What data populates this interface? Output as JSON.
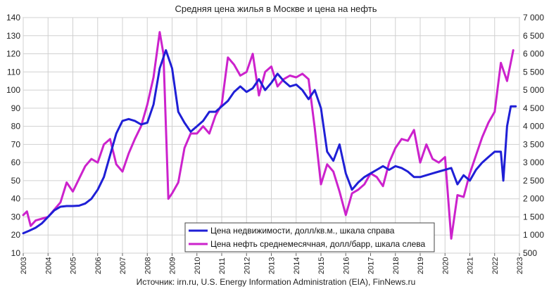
{
  "chart_data": {
    "type": "line",
    "title": "Средняя цена жилья в Москве и цена на нефть",
    "source": "Источник: irn.ru, U.S. Energy Information Administration (EIA), FinNews.ru",
    "x_ticks": [
      "2003",
      "2004",
      "2005",
      "2006",
      "2007",
      "2008",
      "2009",
      "2010",
      "2011",
      "2012",
      "2013",
      "2014",
      "2015",
      "2016",
      "2017",
      "2018",
      "2019",
      "2020",
      "2021",
      "2022",
      "2023"
    ],
    "left_axis": {
      "ylim": [
        10,
        140
      ],
      "ticks": [
        "10",
        "20",
        "30",
        "40",
        "50",
        "60",
        "70",
        "80",
        "90",
        "100",
        "110",
        "120",
        "130",
        "140"
      ]
    },
    "right_axis": {
      "ylim": [
        500,
        7000
      ],
      "ticks": [
        "500",
        "1 000",
        "1 500",
        "2 000",
        "2 500",
        "3 000",
        "3 500",
        "4 000",
        "4 500",
        "5 000",
        "5 500",
        "6 000",
        "6 500",
        "7 000"
      ]
    },
    "grid": true,
    "legend_position": "bottom-center",
    "series": [
      {
        "name": "Цена недвижимости, долл/кв.м., шкала справа",
        "color": "#1f1fd6",
        "axis": "right",
        "points": [
          [
            2003.0,
            1050
          ],
          [
            2003.25,
            1120
          ],
          [
            2003.5,
            1200
          ],
          [
            2003.75,
            1320
          ],
          [
            2004.0,
            1500
          ],
          [
            2004.25,
            1680
          ],
          [
            2004.5,
            1780
          ],
          [
            2004.75,
            1800
          ],
          [
            2005.0,
            1800
          ],
          [
            2005.25,
            1810
          ],
          [
            2005.5,
            1870
          ],
          [
            2005.75,
            2000
          ],
          [
            2006.0,
            2250
          ],
          [
            2006.25,
            2600
          ],
          [
            2006.5,
            3200
          ],
          [
            2006.75,
            3800
          ],
          [
            2007.0,
            4150
          ],
          [
            2007.25,
            4200
          ],
          [
            2007.5,
            4150
          ],
          [
            2007.75,
            4050
          ],
          [
            2008.0,
            4100
          ],
          [
            2008.25,
            4600
          ],
          [
            2008.5,
            5600
          ],
          [
            2008.75,
            6100
          ],
          [
            2009.0,
            5600
          ],
          [
            2009.25,
            4400
          ],
          [
            2009.5,
            4100
          ],
          [
            2009.75,
            3850
          ],
          [
            2010.0,
            4000
          ],
          [
            2010.25,
            4150
          ],
          [
            2010.5,
            4400
          ],
          [
            2010.75,
            4400
          ],
          [
            2011.0,
            4550
          ],
          [
            2011.25,
            4700
          ],
          [
            2011.5,
            4950
          ],
          [
            2011.75,
            5100
          ],
          [
            2012.0,
            4950
          ],
          [
            2012.25,
            5050
          ],
          [
            2012.5,
            5300
          ],
          [
            2012.75,
            5000
          ],
          [
            2013.0,
            5200
          ],
          [
            2013.25,
            5450
          ],
          [
            2013.5,
            5250
          ],
          [
            2013.75,
            5100
          ],
          [
            2014.0,
            5150
          ],
          [
            2014.25,
            5000
          ],
          [
            2014.5,
            4750
          ],
          [
            2014.75,
            5000
          ],
          [
            2015.0,
            4500
          ],
          [
            2015.25,
            3300
          ],
          [
            2015.5,
            3050
          ],
          [
            2015.75,
            3500
          ],
          [
            2016.0,
            2700
          ],
          [
            2016.25,
            2250
          ],
          [
            2016.5,
            2450
          ],
          [
            2016.75,
            2600
          ],
          [
            2017.0,
            2700
          ],
          [
            2017.25,
            2800
          ],
          [
            2017.5,
            2900
          ],
          [
            2017.75,
            2800
          ],
          [
            2018.0,
            2900
          ],
          [
            2018.25,
            2850
          ],
          [
            2018.5,
            2750
          ],
          [
            2018.75,
            2600
          ],
          [
            2019.0,
            2600
          ],
          [
            2019.25,
            2650
          ],
          [
            2019.5,
            2700
          ],
          [
            2019.75,
            2750
          ],
          [
            2020.0,
            2800
          ],
          [
            2020.25,
            2850
          ],
          [
            2020.5,
            2400
          ],
          [
            2020.75,
            2650
          ],
          [
            2021.0,
            2500
          ],
          [
            2021.25,
            2800
          ],
          [
            2021.5,
            3000
          ],
          [
            2021.75,
            3150
          ],
          [
            2022.0,
            3300
          ],
          [
            2022.25,
            3300
          ],
          [
            2022.35,
            2500
          ],
          [
            2022.5,
            4000
          ],
          [
            2022.65,
            4550
          ],
          [
            2022.85,
            4550
          ]
        ]
      },
      {
        "name": "Цена нефть среднемесячная, долл/барр, шкала слева",
        "color": "#cc22cc",
        "axis": "left",
        "points": [
          [
            2003.0,
            31
          ],
          [
            2003.15,
            33
          ],
          [
            2003.3,
            25
          ],
          [
            2003.5,
            28
          ],
          [
            2003.75,
            29
          ],
          [
            2004.0,
            30
          ],
          [
            2004.25,
            34
          ],
          [
            2004.5,
            38
          ],
          [
            2004.75,
            49
          ],
          [
            2005.0,
            44
          ],
          [
            2005.25,
            51
          ],
          [
            2005.5,
            58
          ],
          [
            2005.75,
            62
          ],
          [
            2006.0,
            60
          ],
          [
            2006.25,
            70
          ],
          [
            2006.5,
            73
          ],
          [
            2006.75,
            59
          ],
          [
            2007.0,
            55
          ],
          [
            2007.25,
            65
          ],
          [
            2007.5,
            73
          ],
          [
            2007.75,
            80
          ],
          [
            2008.0,
            92
          ],
          [
            2008.25,
            107
          ],
          [
            2008.5,
            132
          ],
          [
            2008.65,
            120
          ],
          [
            2008.85,
            40
          ],
          [
            2009.0,
            43
          ],
          [
            2009.25,
            49
          ],
          [
            2009.5,
            68
          ],
          [
            2009.75,
            76
          ],
          [
            2010.0,
            76
          ],
          [
            2010.25,
            80
          ],
          [
            2010.5,
            76
          ],
          [
            2010.75,
            86
          ],
          [
            2011.0,
            92
          ],
          [
            2011.25,
            118
          ],
          [
            2011.5,
            114
          ],
          [
            2011.75,
            108
          ],
          [
            2012.0,
            110
          ],
          [
            2012.25,
            120
          ],
          [
            2012.5,
            97
          ],
          [
            2012.75,
            110
          ],
          [
            2013.0,
            113
          ],
          [
            2013.25,
            102
          ],
          [
            2013.5,
            106
          ],
          [
            2013.75,
            108
          ],
          [
            2014.0,
            107
          ],
          [
            2014.25,
            109
          ],
          [
            2014.5,
            106
          ],
          [
            2014.75,
            79
          ],
          [
            2015.0,
            48
          ],
          [
            2015.25,
            59
          ],
          [
            2015.5,
            55
          ],
          [
            2015.75,
            44
          ],
          [
            2016.0,
            31
          ],
          [
            2016.25,
            43
          ],
          [
            2016.5,
            45
          ],
          [
            2016.75,
            48
          ],
          [
            2017.0,
            54
          ],
          [
            2017.25,
            52
          ],
          [
            2017.5,
            47
          ],
          [
            2017.75,
            60
          ],
          [
            2018.0,
            68
          ],
          [
            2018.25,
            73
          ],
          [
            2018.5,
            72
          ],
          [
            2018.75,
            78
          ],
          [
            2019.0,
            60
          ],
          [
            2019.25,
            70
          ],
          [
            2019.5,
            62
          ],
          [
            2019.75,
            60
          ],
          [
            2020.0,
            63
          ],
          [
            2020.25,
            18
          ],
          [
            2020.5,
            42
          ],
          [
            2020.75,
            41
          ],
          [
            2021.0,
            54
          ],
          [
            2021.25,
            64
          ],
          [
            2021.5,
            74
          ],
          [
            2021.75,
            82
          ],
          [
            2022.0,
            88
          ],
          [
            2022.25,
            115
          ],
          [
            2022.5,
            105
          ],
          [
            2022.75,
            122
          ]
        ]
      }
    ]
  }
}
